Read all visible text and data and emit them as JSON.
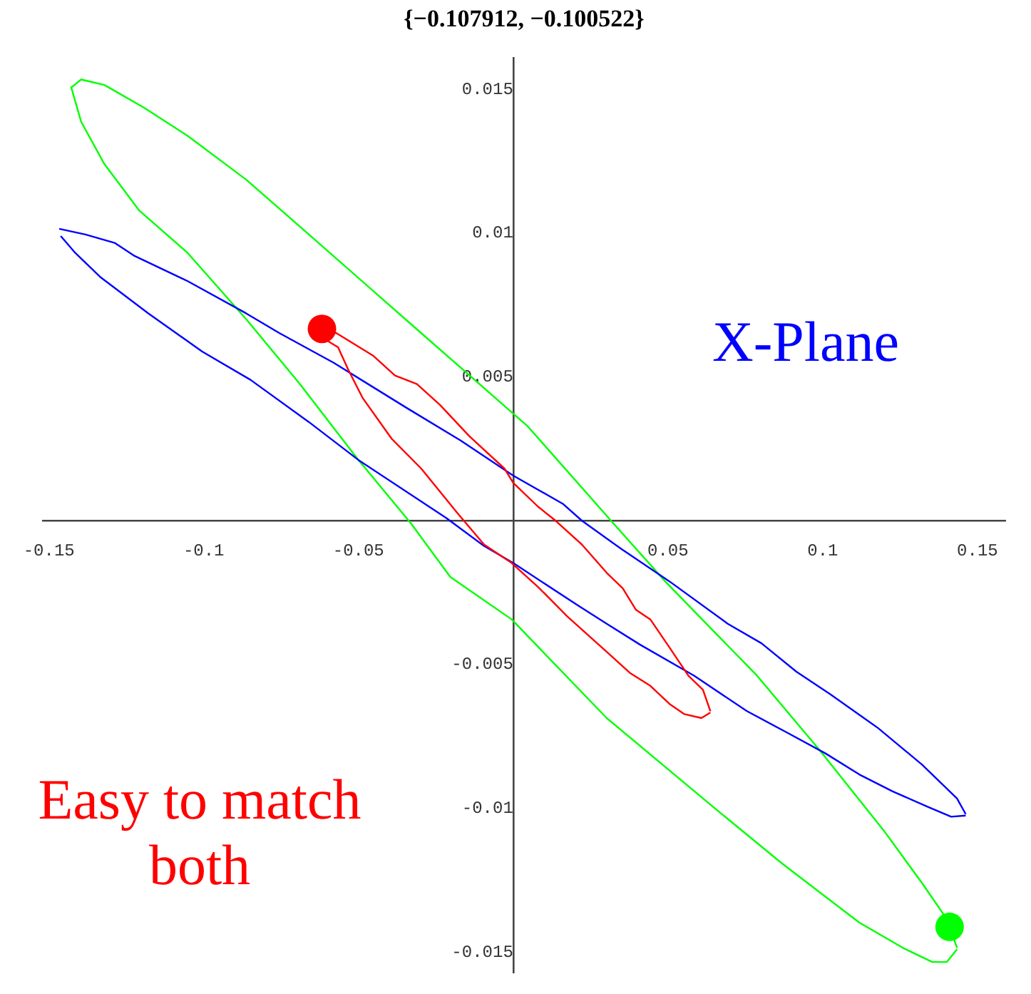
{
  "chart_data": {
    "type": "line",
    "title": "{−0.107912, −0.100522}",
    "xlim": [
      -0.152,
      0.159
    ],
    "ylim": [
      -0.0157,
      0.0161
    ],
    "xticks": [
      -0.15,
      -0.1,
      -0.05,
      0.05,
      0.1,
      0.15
    ],
    "yticks": [
      -0.015,
      -0.01,
      -0.005,
      0.005,
      0.01,
      0.015
    ],
    "grid": false,
    "legend": false,
    "marker": "none",
    "line_style": "solid",
    "annotations": [
      "X-Plane",
      "Easy to match both"
    ],
    "series": [
      {
        "color": "#ff0000",
        "x": [
          -0.0618,
          -0.0571,
          -0.0453,
          -0.0382,
          -0.0311,
          -0.0236,
          -0.0142,
          -0.0028,
          0.0,
          0.008,
          0.0137,
          0.0222,
          0.0302,
          0.0354,
          0.0396,
          0.0443,
          0.0505,
          0.0566,
          0.0613,
          0.0637
        ],
        "values": [
          0.00667,
          0.00652,
          0.00574,
          0.00505,
          0.00475,
          0.00402,
          0.00294,
          0.00181,
          0.00132,
          0.00049,
          0.0,
          -0.00083,
          -0.00181,
          -0.00235,
          -0.00309,
          -0.00343,
          -0.00441,
          -0.00539,
          -0.00588,
          -0.00662
        ]
      },
      {
        "color": "#ff0000",
        "x": [
          -0.0618,
          -0.0566,
          -0.0533,
          -0.0486,
          -0.0392,
          -0.0297,
          -0.0179,
          -0.0094,
          -0.0005,
          0.008,
          0.0175,
          0.0236,
          0.0302,
          0.0377,
          0.0443,
          0.0505,
          0.0552,
          0.0608,
          0.0637
        ],
        "values": [
          0.00637,
          0.00603,
          0.00525,
          0.00426,
          0.00284,
          0.00181,
          0.00025,
          -0.00083,
          -0.00147,
          -0.0023,
          -0.00333,
          -0.00392,
          -0.00456,
          -0.00529,
          -0.00574,
          -0.00637,
          -0.00672,
          -0.00686,
          -0.00667
        ]
      },
      {
        "color": "#0000ff",
        "x": [
          -0.1467,
          -0.1382,
          -0.1288,
          -0.1226,
          -0.1052,
          -0.0863,
          -0.0755,
          -0.058,
          -0.0344,
          -0.017,
          0.0,
          0.016,
          0.0222,
          0.0349,
          0.0505,
          0.0693,
          0.0802,
          0.0915,
          0.1024,
          0.1179,
          0.1321,
          0.1434,
          0.1462
        ],
        "values": [
          0.01015,
          0.00995,
          0.00966,
          0.00922,
          0.00833,
          0.00721,
          0.00652,
          0.00549,
          0.00392,
          0.00279,
          0.00157,
          0.00059,
          0.0,
          -0.00098,
          -0.00211,
          -0.00358,
          -0.00426,
          -0.00525,
          -0.00603,
          -0.00721,
          -0.00848,
          -0.00966,
          -0.0102
        ]
      },
      {
        "color": "#0000ff",
        "x": [
          -0.1462,
          -0.1415,
          -0.1335,
          -0.1179,
          -0.1005,
          -0.0849,
          -0.066,
          -0.05,
          -0.0217,
          -0.0094,
          0.0,
          0.0208,
          0.0302,
          0.041,
          0.0585,
          0.0755,
          0.0882,
          0.1009,
          0.1118,
          0.1226,
          0.134,
          0.1415,
          0.1462
        ],
        "values": [
          0.0099,
          0.00931,
          0.00848,
          0.00721,
          0.00588,
          0.0049,
          0.00343,
          0.00211,
          0.0001,
          -0.00088,
          -0.00147,
          -0.00294,
          -0.00358,
          -0.00431,
          -0.00539,
          -0.00662,
          -0.00735,
          -0.00809,
          -0.00882,
          -0.00941,
          -0.00995,
          -0.01029,
          -0.01025
        ]
      },
      {
        "color": "#00ff00",
        "x": [
          -0.1429,
          -0.1396,
          -0.1321,
          -0.1208,
          -0.1052,
          -0.0863,
          -0.0689,
          -0.05,
          -0.033,
          -0.0203,
          -0.0005,
          0.0302,
          0.0646,
          0.0868,
          0.1118,
          0.1259,
          0.1354,
          0.1401,
          0.1434
        ],
        "values": [
          0.0151,
          0.01387,
          0.0124,
          0.01078,
          0.00931,
          0.00701,
          0.00475,
          0.00211,
          -0.0001,
          -0.00196,
          -0.00343,
          -0.00686,
          -0.00995,
          -0.01191,
          -0.01397,
          -0.01485,
          -0.01534,
          -0.01534,
          -0.0149
        ]
      },
      {
        "color": "#00ff00",
        "x": [
          -0.1429,
          -0.1396,
          -0.1321,
          -0.1193,
          -0.1052,
          -0.0863,
          -0.066,
          -0.0297,
          0.0047,
          0.0316,
          0.0491,
          0.0788,
          0.0991,
          0.1198,
          0.1321,
          0.1387,
          0.141,
          0.1434
        ],
        "values": [
          0.01505,
          0.01534,
          0.01515,
          0.01436,
          0.01338,
          0.01186,
          0.00995,
          0.00652,
          0.00328,
          0.0,
          -0.00211,
          -0.00539,
          -0.00799,
          -0.01078,
          -0.0126,
          -0.01363,
          -0.01412,
          -0.01485
        ]
      },
      {
        "type": "scatter",
        "color": "#ff0000",
        "marker": "circle",
        "x": [
          -0.0618
        ],
        "values": [
          0.00667
        ]
      },
      {
        "type": "scatter",
        "color": "#00ff00",
        "marker": "circle",
        "x": [
          0.141
        ],
        "values": [
          -0.01412
        ]
      }
    ]
  }
}
